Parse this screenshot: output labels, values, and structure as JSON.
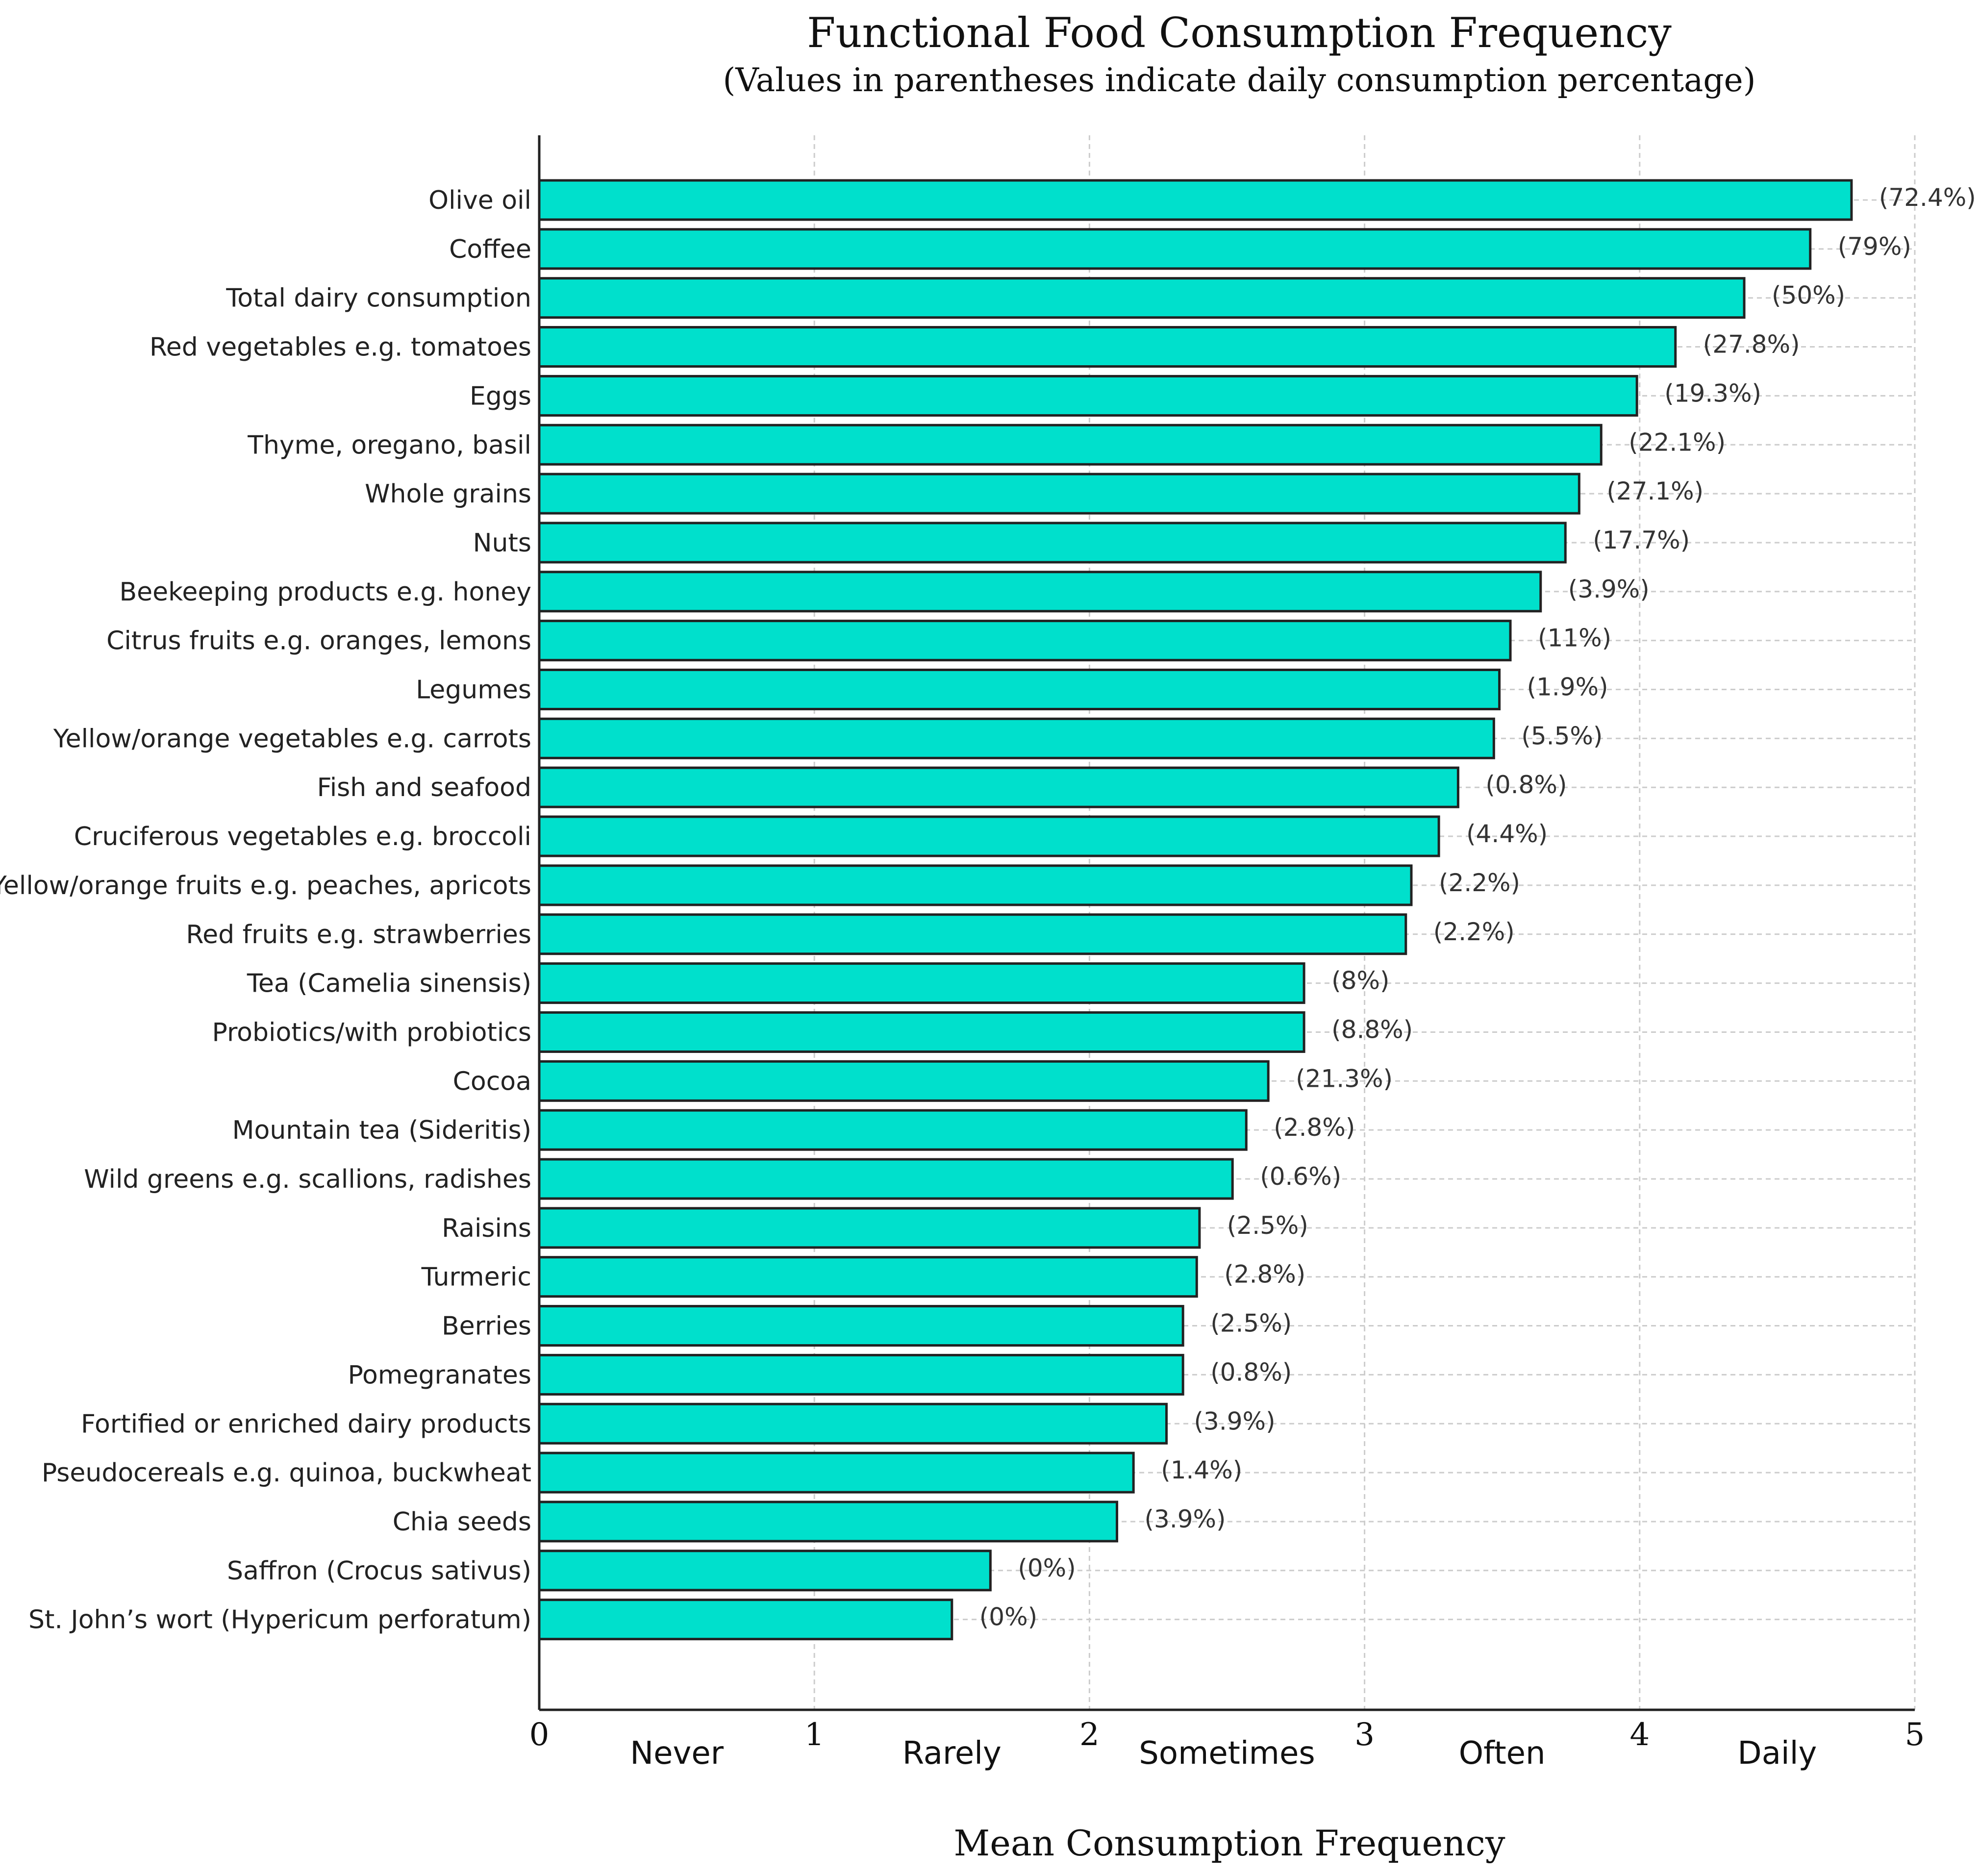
{
  "chart_data": {
    "type": "bar",
    "orientation": "horizontal",
    "title": "Functional Food Consumption Frequency",
    "subtitle": "(Values in parentheses indicate daily consumption percentage)",
    "xlabel": "Mean Consumption Frequency",
    "ylabel": "",
    "xlim": [
      0,
      5
    ],
    "x_ticks": [
      "0",
      "1",
      "2",
      "3",
      "4",
      "5"
    ],
    "frequency_labels": [
      "Never",
      "Rarely",
      "Sometimes",
      "Often",
      "Daily"
    ],
    "grid": true,
    "bar_color": "#00E0CC",
    "bar_edge_color": "#222222",
    "categories": [
      "Olive oil",
      "Coffee",
      "Total dairy consumption",
      "Red vegetables e.g. tomatoes",
      "Eggs",
      "Thyme, oregano, basil",
      "Whole grains",
      "Nuts",
      "Beekeeping products e.g. honey",
      "Citrus fruits e.g. oranges, lemons",
      "Legumes",
      "Yellow/orange vegetables e.g. carrots",
      "Fish and seafood",
      "Cruciferous vegetables e.g. broccoli",
      "Yellow/orange fruits e.g. peaches, apricots",
      "Red fruits e.g. strawberries",
      "Tea (Camelia sinensis)",
      "Probiotics/with probiotics",
      "Cocoa",
      "Mountain tea (Sideritis)",
      "Wild greens e.g. scallions, radishes",
      "Raisins",
      "Turmeric",
      "Berries",
      "Pomegranates",
      "Fortified or enriched dairy products",
      "Pseudocereals e.g. quinoa, buckwheat",
      "Chia seeds",
      "Saffron (Crocus sativus)",
      "St. John’s wort (Hypericum perforatum)"
    ],
    "values": [
      4.77,
      4.62,
      4.38,
      4.13,
      3.99,
      3.86,
      3.78,
      3.73,
      3.64,
      3.53,
      3.49,
      3.47,
      3.34,
      3.27,
      3.17,
      3.15,
      2.78,
      2.78,
      2.65,
      2.57,
      2.52,
      2.4,
      2.39,
      2.34,
      2.34,
      2.28,
      2.16,
      2.1,
      1.64,
      1.5
    ],
    "value_labels": [
      "(72.4%)",
      "(79%)",
      "(50%)",
      "(27.8%)",
      "(19.3%)",
      "(22.1%)",
      "(27.1%)",
      "(17.7%)",
      "(3.9%)",
      "(11%)",
      "(1.9%)",
      "(5.5%)",
      "(0.8%)",
      "(4.4%)",
      "(2.2%)",
      "(2.2%)",
      "(8%)",
      "(8.8%)",
      "(21.3%)",
      "(2.8%)",
      "(0.6%)",
      "(2.5%)",
      "(2.8%)",
      "(2.5%)",
      "(0.8%)",
      "(3.9%)",
      "(1.4%)",
      "(3.9%)",
      "(0%)",
      "(0%)"
    ]
  }
}
